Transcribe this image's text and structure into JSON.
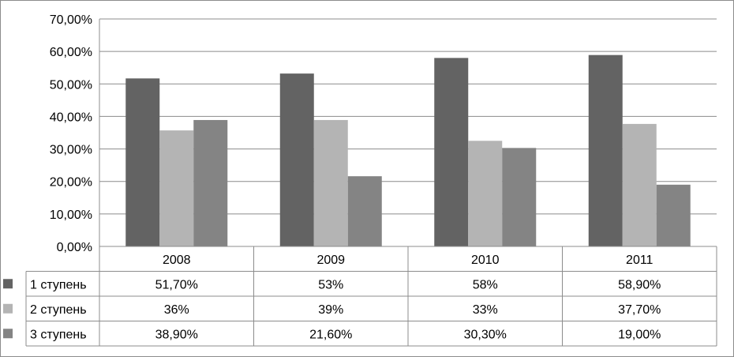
{
  "chart_data": {
    "type": "bar",
    "categories": [
      "2008",
      "2009",
      "2010",
      "2011"
    ],
    "series": [
      {
        "name": "1 ступень",
        "values": [
          51.7,
          53.2,
          58.0,
          58.9
        ],
        "labels": [
          "51,70%",
          "53%",
          "58%",
          "58,90%"
        ],
        "color": "#636363"
      },
      {
        "name": "2 ступень",
        "values": [
          35.7,
          38.9,
          32.5,
          37.7
        ],
        "labels": [
          "36%",
          "39%",
          "33%",
          "37,70%"
        ],
        "color": "#b4b4b4"
      },
      {
        "name": "3 ступень",
        "values": [
          38.9,
          21.6,
          30.3,
          19.0
        ],
        "labels": [
          "38,90%",
          "21,60%",
          "30,30%",
          "19,00%"
        ],
        "color": "#848484"
      }
    ],
    "yticks": [
      "0,00%",
      "10,00%",
      "20,00%",
      "30,00%",
      "40,00%",
      "50,00%",
      "60,00%",
      "70,00%"
    ],
    "ylim": [
      0,
      70
    ],
    "ytick_step": 10,
    "grid": true,
    "legend": "data-table"
  }
}
